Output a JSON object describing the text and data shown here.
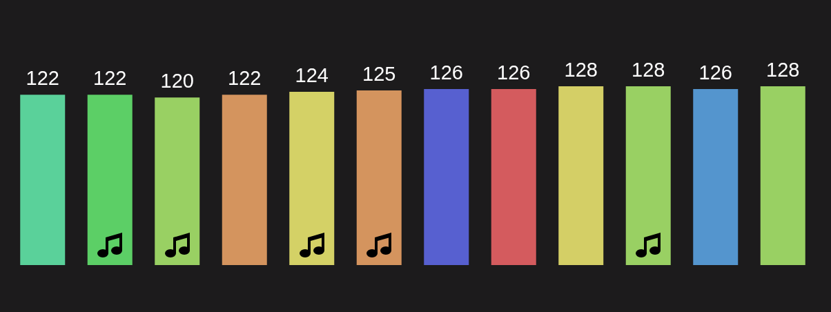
{
  "chart_data": {
    "type": "bar",
    "categories": [
      null,
      null,
      null,
      null,
      null,
      null,
      null,
      null,
      null,
      null,
      null,
      null
    ],
    "values": [
      122,
      122,
      120,
      122,
      124,
      125,
      126,
      126,
      128,
      128,
      126,
      128
    ],
    "colors": [
      "#5ad19a",
      "#5ccf66",
      "#99d063",
      "#d4945e",
      "#d4d166",
      "#d4945e",
      "#5760d0",
      "#d45b5e",
      "#d4cf66",
      "#99d063",
      "#5495ce",
      "#99d063"
    ],
    "data_labels": true,
    "tick_labels": false
  }
}
